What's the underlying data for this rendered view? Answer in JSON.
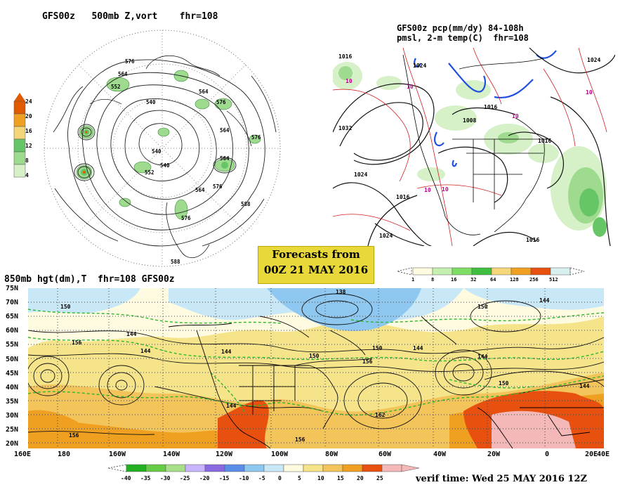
{
  "panel_nh": {
    "title": "GFS00z   500mb Z,vort    fhr=108",
    "colorbar_labels": [
      "24",
      "20",
      "16",
      "12",
      "8",
      "4"
    ],
    "colorbar_colors": [
      "#e05a00",
      "#f0a020",
      "#f3d57a",
      "#66c566",
      "#9fdb8f",
      "#d6f0c8"
    ],
    "contour_labels": [
      "576",
      "564",
      "552",
      "540",
      "564",
      "576",
      "564",
      "540",
      "552",
      "564",
      "576",
      "564",
      "540",
      "576",
      "588",
      "588",
      "576"
    ]
  },
  "panel_na": {
    "title_line1": "GFS00z pcp(mm/dy) 84-108h",
    "title_line2": "pmsl, 2-m temp(C)  fhr=108",
    "isobar_labels": [
      "1024",
      "1016",
      "1032",
      "1024",
      "1024",
      "1016",
      "1008",
      "1016",
      "1016",
      "1016",
      "1024"
    ],
    "temp_labels": [
      "10",
      "10",
      "10",
      "10",
      "10",
      "10"
    ],
    "precip_colorbar_labels": [
      "1",
      "8",
      "16",
      "32",
      "64",
      "128",
      "256",
      "512"
    ],
    "precip_colors": [
      "#fffbe0",
      "#c6f0b0",
      "#7fdd66",
      "#3fbf3f",
      "#f5d77a",
      "#f0a020",
      "#e85010",
      "#d8f0f0"
    ]
  },
  "forecast_box": {
    "line1": "Forecasts from",
    "line2": "00Z 21 MAY 2016"
  },
  "panel_global": {
    "title": "850mb hgt(dm),T  fhr=108 GFS00z",
    "lat_labels": [
      "75N",
      "70N",
      "65N",
      "60N",
      "55N",
      "50N",
      "45N",
      "40N",
      "35N",
      "30N",
      "25N",
      "20N"
    ],
    "lon_labels": [
      "160E",
      "180",
      "160W",
      "140W",
      "120W",
      "100W",
      "80W",
      "60W",
      "40W",
      "20W",
      "0",
      "20E",
      "40E"
    ],
    "contour_labels": [
      "138",
      "150",
      "144",
      "156",
      "144",
      "144",
      "150",
      "156",
      "162",
      "150",
      "144",
      "144",
      "150",
      "144",
      "144",
      "156",
      "156",
      "150",
      "144"
    ],
    "temp_colorbar_labels": [
      "-40",
      "-35",
      "-30",
      "-25",
      "-20",
      "-15",
      "-10",
      "-5",
      "0",
      "5",
      "10",
      "15",
      "20",
      "25"
    ],
    "temp_colors": [
      "#22b022",
      "#66cc44",
      "#a8e088",
      "#c9b4ff",
      "#8a6ae0",
      "#5a8ee8",
      "#8ec8f0",
      "#c8e8f8",
      "#fffbe0",
      "#f5e48a",
      "#f3c45a",
      "#f0a020",
      "#e85010",
      "#f4b8b8"
    ],
    "verif_time": "verif time: Wed 25 MAY 2016 12Z"
  }
}
